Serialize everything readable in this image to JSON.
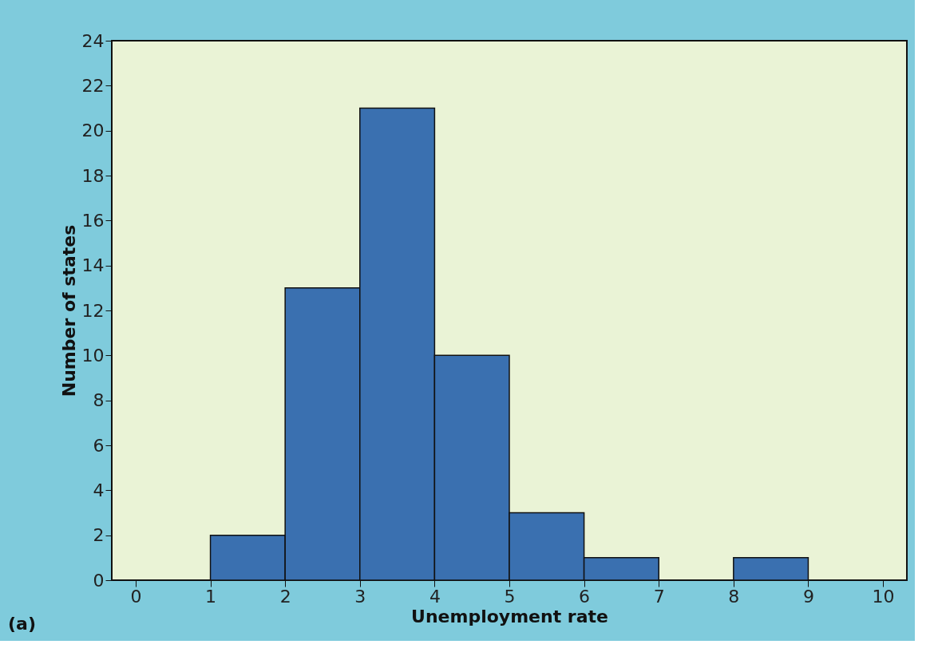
{
  "chart_data": {
    "type": "histogram",
    "xlabel": "Unemployment rate",
    "ylabel": "Number of states",
    "bins": [
      0,
      1,
      2,
      3,
      4,
      5,
      6,
      7,
      8,
      9,
      10
    ],
    "values": [
      0,
      2,
      13,
      21,
      10,
      3,
      1,
      0,
      1,
      0
    ],
    "color": "#3a70b0",
    "xlim": [
      -0.32,
      10.32
    ],
    "xticks": [
      0,
      1,
      2,
      3,
      4,
      5,
      6,
      7,
      8,
      9,
      10
    ],
    "ylim": [
      0,
      24
    ],
    "yticks": [
      0,
      2,
      4,
      6,
      8,
      10,
      12,
      14,
      16,
      18,
      20,
      22,
      24
    ],
    "grid": false,
    "annotations": [
      "(a)"
    ]
  }
}
